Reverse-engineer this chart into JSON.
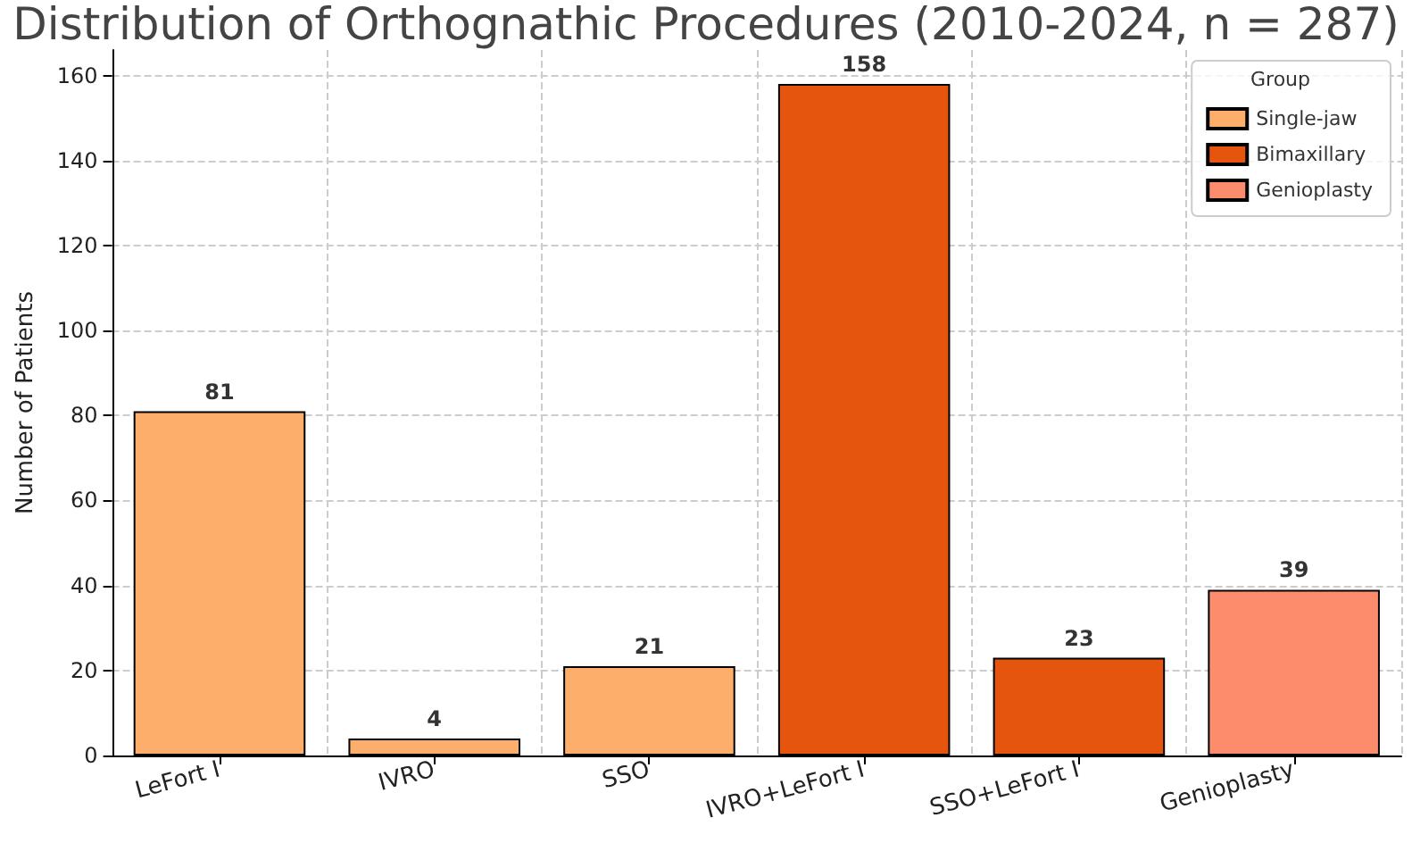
{
  "chart_data": {
    "type": "bar",
    "title": "Distribution of Orthognathic Procedures (2010-2024, n = 287)",
    "ylabel": "Number of Patients",
    "legend_title": "Group",
    "categories": [
      "LeFort I",
      "IVRO",
      "SSO",
      "IVRO+LeFort I",
      "SSO+LeFort I",
      "Genioplasty"
    ],
    "series": [
      {
        "name": "Single-jaw",
        "color": "#fdae6b",
        "values": [
          81,
          4,
          21,
          null,
          null,
          null
        ]
      },
      {
        "name": "Bimaxillary",
        "color": "#e6550d",
        "values": [
          null,
          null,
          null,
          158,
          23,
          null
        ]
      },
      {
        "name": "Genioplasty",
        "color": "#fc8d6c",
        "values": [
          null,
          null,
          null,
          null,
          null,
          39
        ]
      }
    ],
    "ylim": [
      0,
      166
    ],
    "yticks": [
      0,
      20,
      40,
      60,
      80,
      100,
      120,
      140,
      160
    ],
    "grid": true,
    "legend": "top right",
    "data_labels": true
  }
}
